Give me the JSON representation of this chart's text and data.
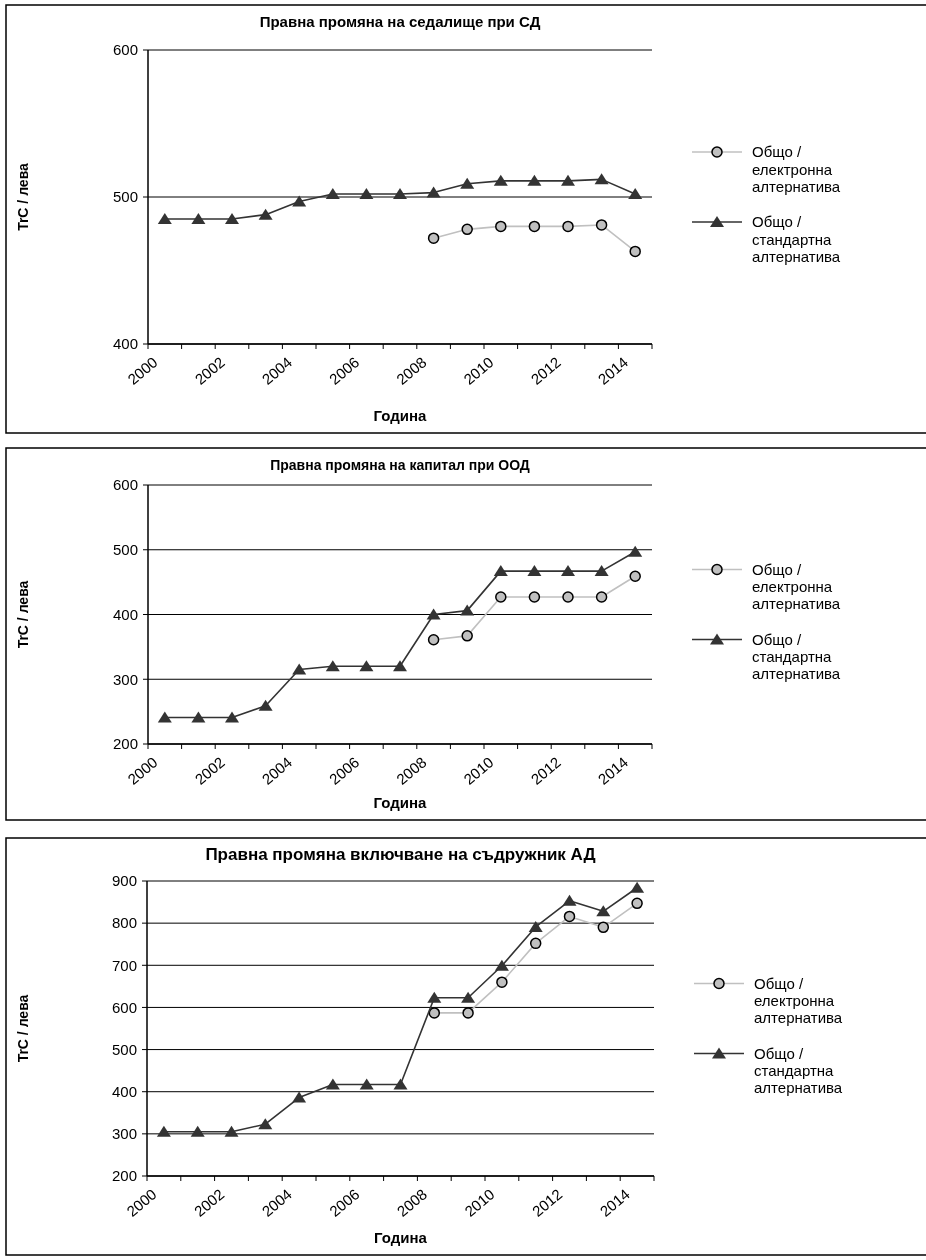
{
  "chart_data": [
    {
      "type": "line",
      "title": "Правна промяна на седалище при СД",
      "xlabel": "Година",
      "ylabel": "TrC / лева",
      "x": [
        2000.5,
        2001.5,
        2002.5,
        2003.5,
        2004.5,
        2005.5,
        2006.5,
        2007.5,
        2008.5,
        2009.5,
        2010.5,
        2011.5,
        2012.5,
        2013.5,
        2014.5
      ],
      "xlim": [
        2000,
        2015
      ],
      "xticks": [
        2000,
        {
          "value": 2001,
          "label": null
        },
        2002,
        {
          "value": 2003,
          "label": null
        },
        2004,
        {
          "value": 2005,
          "label": null
        },
        2006,
        {
          "value": 2007,
          "label": null
        },
        2008,
        {
          "value": 2009,
          "label": null
        },
        2010,
        {
          "value": 2011,
          "label": null
        },
        2012,
        {
          "value": 2013,
          "label": null
        },
        2014,
        {
          "value": 2015,
          "label": null
        }
      ],
      "ylim": [
        400,
        600
      ],
      "yticks": [
        400,
        500,
        600
      ],
      "grid": "y",
      "legend": "right",
      "series": [
        {
          "name": "Общо / електронна алтернатива",
          "color": "#c0c0c0",
          "marker": "circle",
          "values": [
            null,
            null,
            null,
            null,
            null,
            null,
            null,
            null,
            472,
            478,
            480,
            480,
            480,
            481,
            463
          ]
        },
        {
          "name": "Общо / стандартна алтернатива",
          "color": "#333333",
          "marker": "triangle",
          "values": [
            485,
            485,
            485,
            488,
            497,
            502,
            502,
            502,
            503,
            509,
            511,
            511,
            511,
            512,
            502
          ]
        }
      ]
    },
    {
      "type": "line",
      "title": "Правна промяна на капитал при ООД",
      "xlabel": "Година",
      "ylabel": "TrC / лева",
      "x": [
        2000.5,
        2001.5,
        2002.5,
        2003.5,
        2004.5,
        2005.5,
        2006.5,
        2007.5,
        2008.5,
        2009.5,
        2010.5,
        2011.5,
        2012.5,
        2013.5,
        2014.5
      ],
      "xlim": [
        2000,
        2015
      ],
      "xticks": [
        2000,
        {
          "value": 2001,
          "label": null
        },
        2002,
        {
          "value": 2003,
          "label": null
        },
        2004,
        {
          "value": 2005,
          "label": null
        },
        2006,
        {
          "value": 2007,
          "label": null
        },
        2008,
        {
          "value": 2009,
          "label": null
        },
        2010,
        {
          "value": 2011,
          "label": null
        },
        2012,
        {
          "value": 2013,
          "label": null
        },
        2014,
        {
          "value": 2015,
          "label": null
        }
      ],
      "ylim": [
        200,
        600
      ],
      "yticks": [
        200,
        300,
        400,
        500,
        600
      ],
      "grid": "y",
      "legend": "right",
      "series": [
        {
          "name": "Общо / електронна алтернатива",
          "color": "#c0c0c0",
          "marker": "circle",
          "values": [
            null,
            null,
            null,
            null,
            null,
            null,
            null,
            null,
            361,
            367,
            427,
            427,
            427,
            427,
            459
          ]
        },
        {
          "name": "Общо / стандартна алтернатива",
          "color": "#333333",
          "marker": "triangle",
          "values": [
            241,
            241,
            241,
            259,
            315,
            320,
            320,
            320,
            400,
            406,
            467,
            467,
            467,
            467,
            497
          ]
        }
      ]
    },
    {
      "type": "line",
      "title": "Правна промяна включване на съдружник АД",
      "xlabel": "Година",
      "ylabel": "TrC / лева",
      "x": [
        2000.5,
        2001.5,
        2002.5,
        2003.5,
        2004.5,
        2005.5,
        2006.5,
        2007.5,
        2008.5,
        2009.5,
        2010.5,
        2011.5,
        2012.5,
        2013.5,
        2014.5
      ],
      "xlim": [
        2000,
        2015
      ],
      "xticks": [
        2000,
        {
          "value": 2001,
          "label": null
        },
        2002,
        {
          "value": 2003,
          "label": null
        },
        2004,
        {
          "value": 2005,
          "label": null
        },
        2006,
        {
          "value": 2007,
          "label": null
        },
        2008,
        {
          "value": 2009,
          "label": null
        },
        2010,
        {
          "value": 2011,
          "label": null
        },
        2012,
        {
          "value": 2013,
          "label": null
        },
        2014,
        {
          "value": 2015,
          "label": null
        }
      ],
      "ylim": [
        200,
        900
      ],
      "yticks": [
        200,
        300,
        400,
        500,
        600,
        700,
        800,
        900
      ],
      "grid": "y",
      "legend": "right",
      "series": [
        {
          "name": "Общо / електронна алтернатива",
          "color": "#c0c0c0",
          "marker": "circle",
          "values": [
            null,
            null,
            null,
            null,
            null,
            null,
            null,
            null,
            587,
            587,
            660,
            752,
            816,
            790,
            847
          ]
        },
        {
          "name": "Общо / стандартна алтернатива",
          "color": "#333333",
          "marker": "triangle",
          "values": [
            305,
            305,
            305,
            323,
            386,
            417,
            417,
            417,
            623,
            623,
            699,
            791,
            853,
            828,
            884
          ]
        }
      ]
    }
  ]
}
